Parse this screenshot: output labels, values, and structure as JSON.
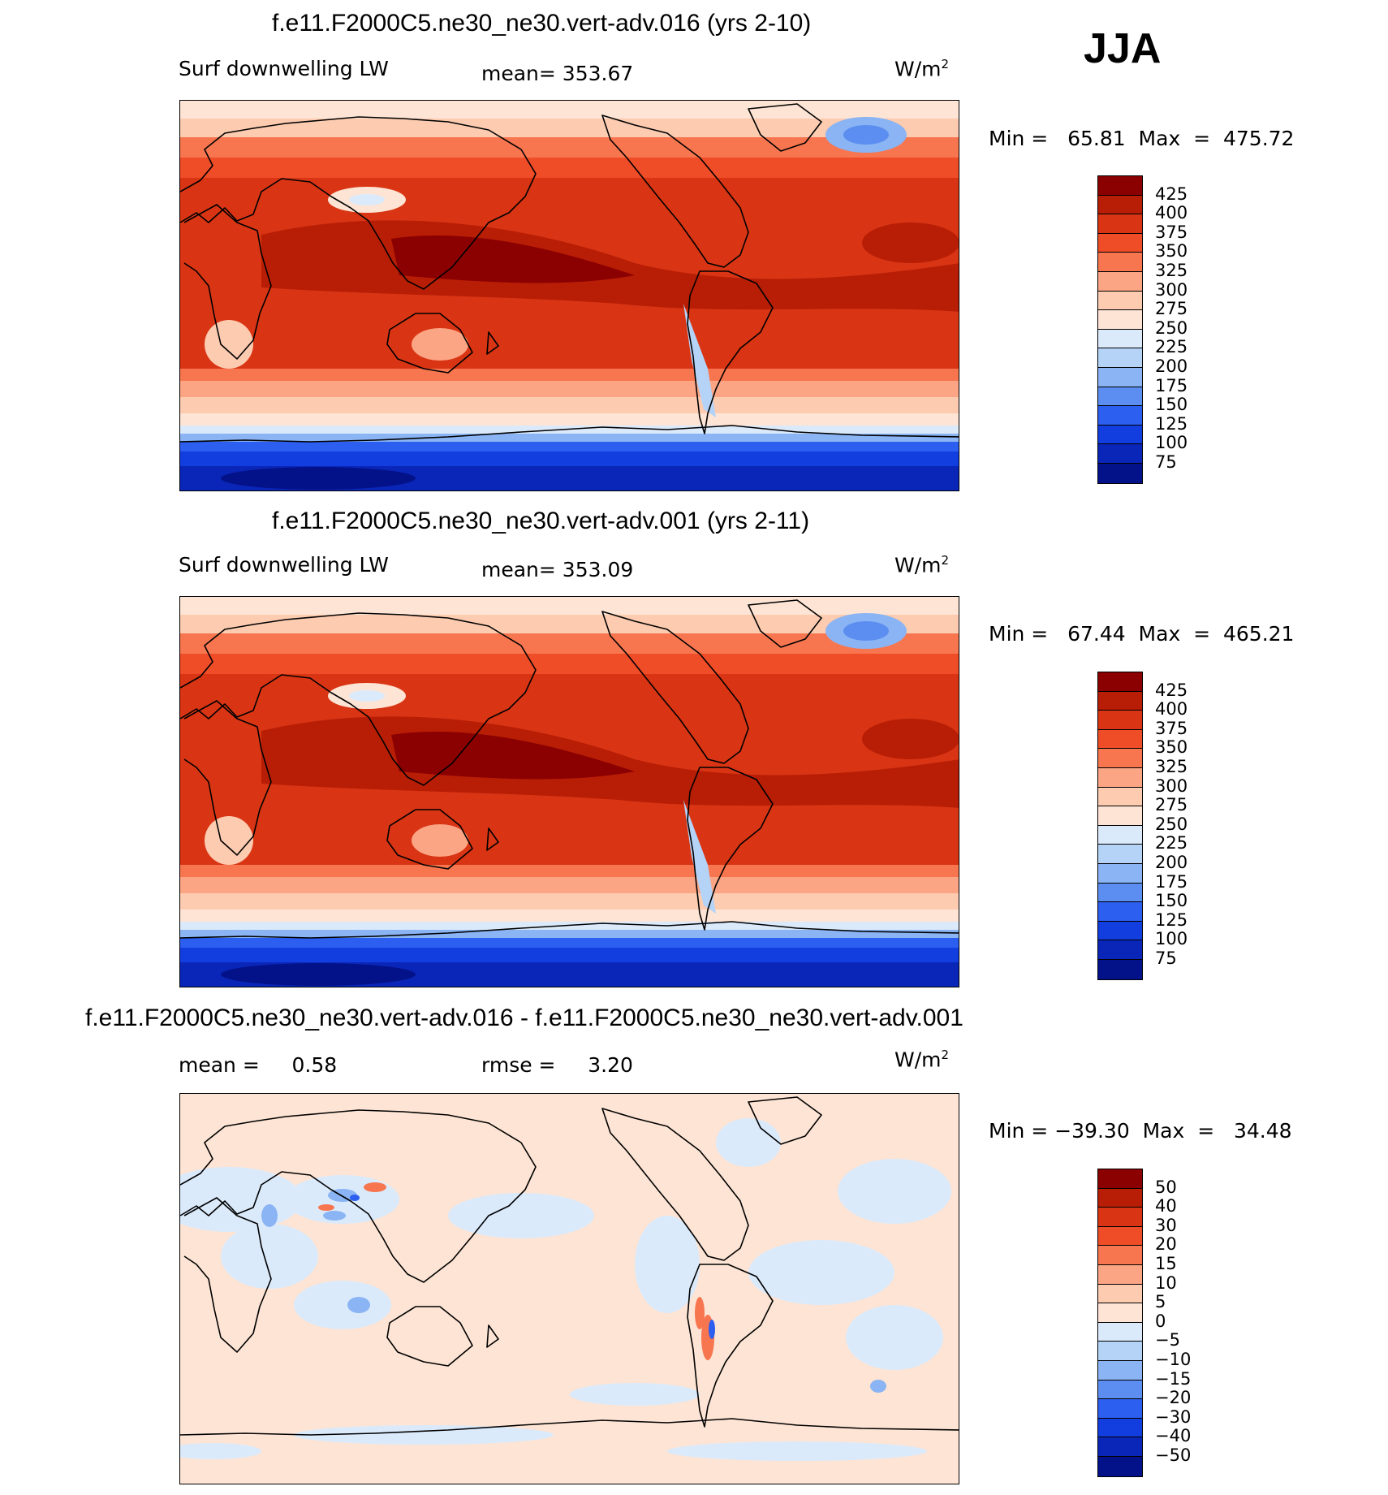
{
  "season": "JJA",
  "colors": {
    "warm": [
      "#fde4d4",
      "#fccbb0",
      "#fba585",
      "#f7764f",
      "#ef4c28",
      "#d93514",
      "#b81e06",
      "#8b0000"
    ],
    "cool": [
      "#dbeafb",
      "#b4d3f7",
      "#8ab4f3",
      "#5b8ef0",
      "#2c5ef0",
      "#123ee0",
      "#0a26b8",
      "#04128a"
    ],
    "line": "#000000"
  },
  "panels": [
    {
      "title": "f.e11.F2000C5.ne30_ne30.vert-adv.016 (yrs 2-10)",
      "left_label": "Surf downwelling LW",
      "center_label": "mean= 353.67",
      "units_label": "W/m",
      "units_sup": "2",
      "minmax": "Min =   65.81  Max  =  475.72",
      "legend_ticks": [
        "425",
        "400",
        "375",
        "350",
        "325",
        "300",
        "275",
        "250",
        "225",
        "200",
        "175",
        "150",
        "125",
        "100",
        "75"
      ],
      "legend_colors": [
        "#8b0000",
        "#b81e06",
        "#d93514",
        "#ef4c28",
        "#f7764f",
        "#fba585",
        "#fccbb0",
        "#fde4d4",
        "#dbeafb",
        "#b4d3f7",
        "#8ab4f3",
        "#5b8ef0",
        "#2c5ef0",
        "#123ee0",
        "#0a26b8",
        "#04128a"
      ],
      "field": "surface downwelling longwave"
    },
    {
      "title": "f.e11.F2000C5.ne30_ne30.vert-adv.001 (yrs 2-11)",
      "left_label": "Surf downwelling LW",
      "center_label": "mean= 353.09",
      "units_label": "W/m",
      "units_sup": "2",
      "minmax": "Min =   67.44  Max  =  465.21",
      "legend_ticks": [
        "425",
        "400",
        "375",
        "350",
        "325",
        "300",
        "275",
        "250",
        "225",
        "200",
        "175",
        "150",
        "125",
        "100",
        "75"
      ],
      "legend_colors": [
        "#8b0000",
        "#b81e06",
        "#d93514",
        "#ef4c28",
        "#f7764f",
        "#fba585",
        "#fccbb0",
        "#fde4d4",
        "#dbeafb",
        "#b4d3f7",
        "#8ab4f3",
        "#5b8ef0",
        "#2c5ef0",
        "#123ee0",
        "#0a26b8",
        "#04128a"
      ],
      "field": "surface downwelling longwave"
    },
    {
      "title": "f.e11.F2000C5.ne30_ne30.vert-adv.016 - f.e11.F2000C5.ne30_ne30.vert-adv.001",
      "left_label": "mean =     0.58",
      "center_label": "rmse =     3.20",
      "units_label": "W/m",
      "units_sup": "2",
      "minmax": "Min = −39.30  Max  =   34.48",
      "legend_ticks": [
        "50",
        "40",
        "30",
        "20",
        "15",
        "10",
        "5",
        "0",
        "−5",
        "−10",
        "−15",
        "−20",
        "−30",
        "−40",
        "−50"
      ],
      "legend_colors": [
        "#8b0000",
        "#b81e06",
        "#d93514",
        "#ef4c28",
        "#f7764f",
        "#fba585",
        "#fccbb0",
        "#fde4d4",
        "#dbeafb",
        "#b4d3f7",
        "#8ab4f3",
        "#5b8ef0",
        "#2c5ef0",
        "#123ee0",
        "#0a26b8",
        "#04128a"
      ],
      "field": "difference"
    }
  ]
}
